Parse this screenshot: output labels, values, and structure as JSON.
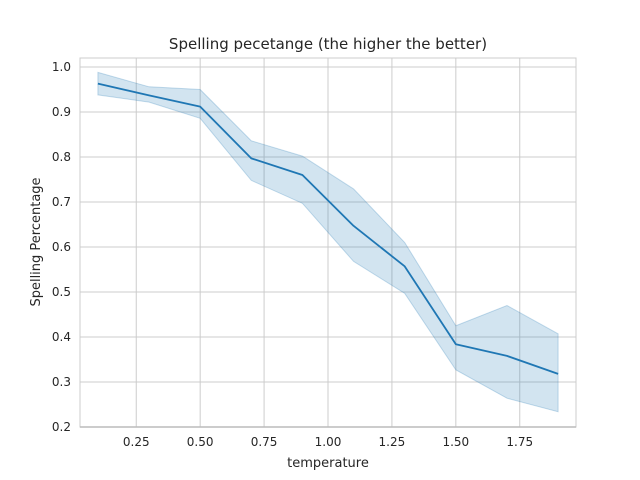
{
  "chart_data": {
    "type": "line",
    "title": "Spelling pecetange (the higher the better)",
    "xlabel": "temperature",
    "ylabel": "Spelling Percentage",
    "xlim": [
      0.03,
      1.97
    ],
    "ylim": [
      0.2,
      1.02
    ],
    "xticks": [
      0.25,
      0.5,
      0.75,
      1.0,
      1.25,
      1.5,
      1.75
    ],
    "xtick_labels": [
      "0.25",
      "0.50",
      "0.75",
      "1.00",
      "1.25",
      "1.50",
      "1.75"
    ],
    "yticks": [
      0.2,
      0.3,
      0.4,
      0.5,
      0.6,
      0.7,
      0.8,
      0.9,
      1.0
    ],
    "ytick_labels": [
      "0.2",
      "0.3",
      "0.4",
      "0.5",
      "0.6",
      "0.7",
      "0.8",
      "0.9",
      "1.0"
    ],
    "grid": true,
    "series": [
      {
        "color": "#1f77b4",
        "x": [
          0.1,
          0.3,
          0.5,
          0.7,
          0.9,
          1.1,
          1.3,
          1.5,
          1.7,
          1.9
        ],
        "values": [
          0.963,
          0.937,
          0.912,
          0.797,
          0.76,
          0.647,
          0.557,
          0.384,
          0.358,
          0.318
        ],
        "ci_low": [
          0.938,
          0.922,
          0.886,
          0.748,
          0.697,
          0.568,
          0.497,
          0.327,
          0.264,
          0.234
        ],
        "ci_high": [
          0.988,
          0.956,
          0.95,
          0.836,
          0.802,
          0.729,
          0.61,
          0.425,
          0.47,
          0.407
        ]
      }
    ],
    "band_color": "#1f77b4",
    "band_opacity": 0.2,
    "grid_color": "#cccccc",
    "spine_color": "#cccccc"
  }
}
